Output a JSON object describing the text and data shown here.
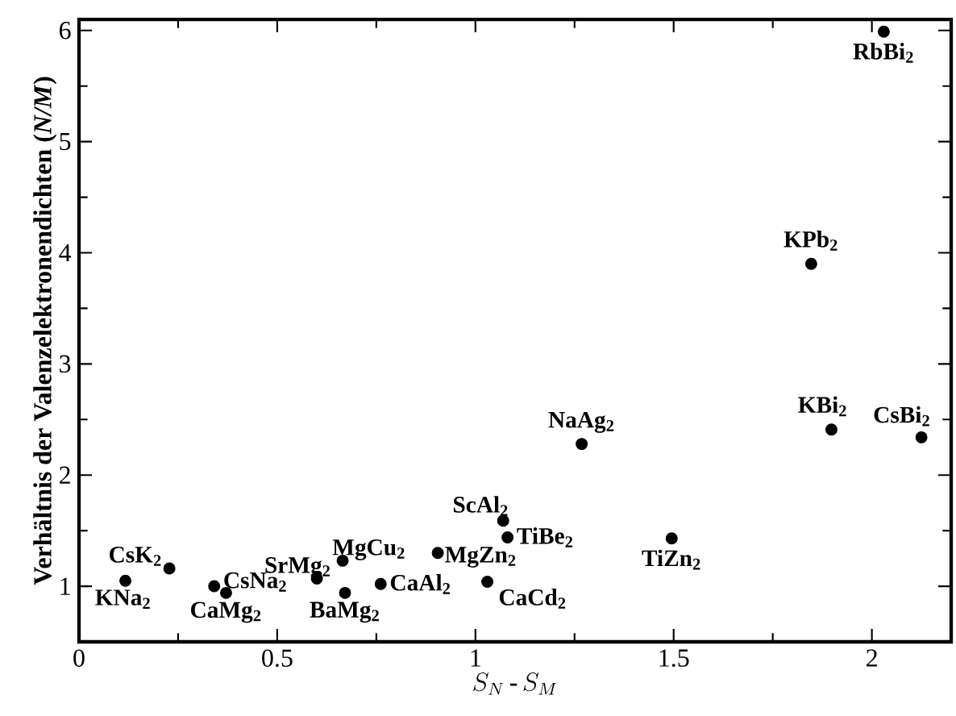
{
  "chart_data": {
    "type": "scatter",
    "xlabel": "S_N\\,\\mbox{-}\\,S_M",
    "ylabel": "Verhältnis der Valenzelektronendichten (*N/M*)",
    "x": [
      0.117,
      0.228,
      0.341,
      0.371,
      0.6,
      0.665,
      0.671,
      0.761,
      0.905,
      1.03,
      1.07,
      1.081,
      1.495,
      1.268,
      1.847,
      1.898,
      2.125,
      2.03
    ],
    "values": [
      1.05,
      1.16,
      1.0,
      0.94,
      1.07,
      1.23,
      0.94,
      1.02,
      1.3,
      1.04,
      1.59,
      1.44,
      1.43,
      2.28,
      3.9,
      2.41,
      2.34,
      5.99
    ],
    "color": "#000000",
    "marker": "circle",
    "xlim": [
      0,
      2.2
    ],
    "ylim": [
      0.5,
      6.1
    ],
    "xticks": [
      0,
      0.5,
      1,
      1.5,
      2
    ],
    "yticks": [
      1,
      2,
      3,
      4,
      5,
      6
    ],
    "annotations": [
      {
        "text": "KNa$_{2}$",
        "x": 0.117,
        "y": 1.05
      },
      {
        "text": "CsK$_{2}$",
        "x": 0.228,
        "y": 1.16
      },
      {
        "text": "CsNa$_{2}$",
        "x": 0.341,
        "y": 1.0
      },
      {
        "text": "CaMg$_{2}$",
        "x": 0.371,
        "y": 0.94
      },
      {
        "text": "SrMg$_{2}$",
        "x": 0.6,
        "y": 1.07
      },
      {
        "text": "MgCu$_{2}$",
        "x": 0.665,
        "y": 1.23
      },
      {
        "text": "BaMg$_{2}$",
        "x": 0.671,
        "y": 0.94
      },
      {
        "text": "CaAl$_{2}$",
        "x": 0.761,
        "y": 1.02
      },
      {
        "text": "MgZn$_{2}$",
        "x": 0.905,
        "y": 1.3
      },
      {
        "text": "CaCd$_{2}$",
        "x": 1.03,
        "y": 1.04
      },
      {
        "text": "ScAl$_{2}$",
        "x": 1.07,
        "y": 1.59
      },
      {
        "text": "TiBe$_{2}$",
        "x": 1.081,
        "y": 1.44
      },
      {
        "text": "TiZn$_{2}$",
        "x": 1.495,
        "y": 1.43
      },
      {
        "text": "NaAg$_{2}$",
        "x": 1.268,
        "y": 2.28
      },
      {
        "text": "KPb$_{2}$",
        "x": 1.847,
        "y": 3.9
      },
      {
        "text": "KBi$_{2}$",
        "x": 1.898,
        "y": 2.41
      },
      {
        "text": "CsBi$_{2}$",
        "x": 2.125,
        "y": 2.34
      },
      {
        "text": "RbBi$_{2}$",
        "x": 2.03,
        "y": 5.99
      }
    ]
  }
}
